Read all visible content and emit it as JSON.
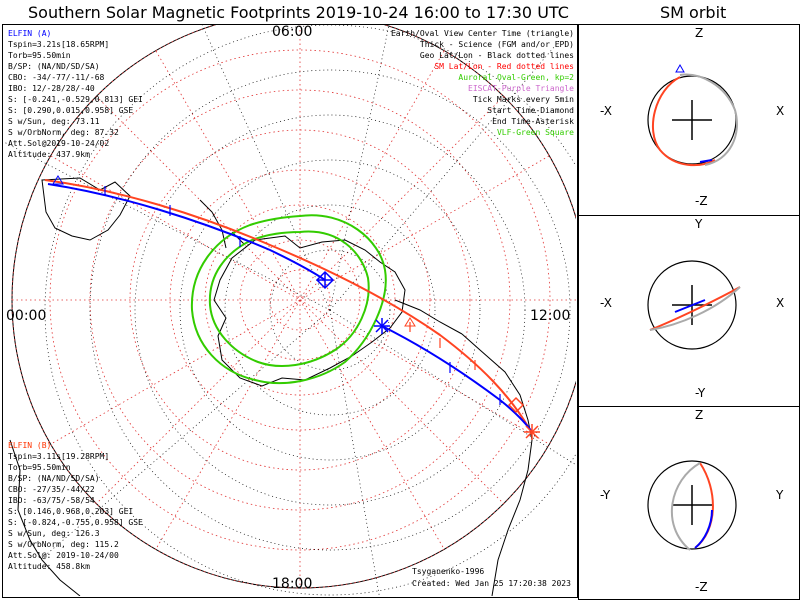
{
  "title": "Southern Solar Magnetic Footprints 2019-10-24 16:00 to 17:30 UTC",
  "side_title": "SM orbit",
  "clock": {
    "top": "06:00",
    "left": "00:00",
    "right": "12:00",
    "bottom": "18:00"
  },
  "legend": [
    {
      "text": "Earth/Oval View Center Time (triangle)",
      "color": "#000000"
    },
    {
      "text": "Thick - Science (FGM and/or EPD)",
      "color": "#000000"
    },
    {
      "text": "Geo Lat/Lon - Black dotted lines",
      "color": "#000000"
    },
    {
      "text": "SM Lat/Lon - Red dotted lines",
      "color": "#ff0000"
    },
    {
      "text": "Auroral Oval-Green, kp=2",
      "color": "#33cc00"
    },
    {
      "text": "EISCAT-Purple Triangle",
      "color": "#cc66cc"
    },
    {
      "text": "Tick Marks every 5min",
      "color": "#000000"
    },
    {
      "text": "Start Time-Diamond",
      "color": "#000000"
    },
    {
      "text": "End Time-Asterisk",
      "color": "#000000"
    },
    {
      "text": "VLF-Green Square",
      "color": "#33cc00"
    }
  ],
  "elfin_a": {
    "name": "ELFIN (A)",
    "color": "#0000ff",
    "lines": [
      "Tspin=3.21s[18.65RPM]",
      "Torb=95.50min",
      "B/SP: (NA/ND/SD/SA)",
      "CBO: -34/-77/-11/-68",
      "IBO: 12/-28/28/-40",
      "S: [-0.241,-0.529,0.813] GEI",
      "S: [0.290,0.015,0.958] GSE",
      "S w/Sun, deg: 73.11",
      "S w/OrbNorm, deg: 87.32",
      "Att.Sol@2019-10-24/02",
      "Altitude: 437.9km"
    ]
  },
  "elfin_b": {
    "name": "ELFIN (B)",
    "color": "#ff3300",
    "lines": [
      "Tspin=3.11s[19.28RPM]",
      "Torb=95.50min",
      "B/SP: (NA/ND/SD/SA)",
      "CBO: -27/35/-44/22",
      "IBO: -63/75/-58/54",
      "S: [0.146,0.968,0.203] GEI",
      "S: [-0.824,-0.755,0.958] GSE",
      "S w/Sun, deg: 126.3",
      "S w/OrbNorm, deg: 115.2",
      "Att.Sol@: 2019-10-24/00",
      "Altitude: 458.8km"
    ]
  },
  "footer": {
    "model": "Tsyganenko-1996",
    "created": "Created: Wed Jan 25 17:20:38 2023"
  },
  "orbit_panels": [
    {
      "top": "Z",
      "bottom": "-Z",
      "left": "-X",
      "right": "X"
    },
    {
      "top": "Y",
      "bottom": "-Y",
      "left": "-X",
      "right": "X"
    },
    {
      "top": "Z",
      "bottom": "-Z",
      "left": "-Y",
      "right": "Y"
    }
  ]
}
